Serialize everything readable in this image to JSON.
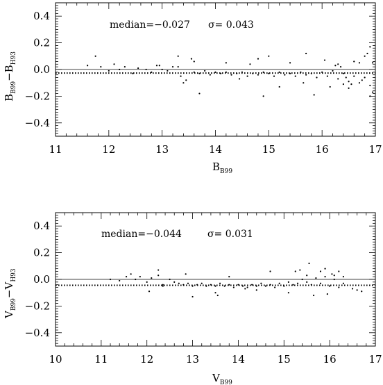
{
  "chart_data": [
    {
      "type": "scatter",
      "annotation": {
        "median_text": "median=−0.027",
        "sigma_text": "σ=  0.043"
      },
      "xlabel": {
        "main": "B",
        "sub": "B99"
      },
      "ylabel": {
        "main1": "B",
        "sub1": "B99",
        "mid": "−B",
        "sub2": "H93"
      },
      "xlim": [
        11,
        17
      ],
      "ylim": [
        -0.5,
        0.5
      ],
      "xticks": [
        11,
        12,
        13,
        14,
        15,
        16,
        17
      ],
      "xtick_labels": [
        "11",
        "12",
        "13",
        "14",
        "15",
        "16",
        "17"
      ],
      "yticks": [
        -0.4,
        -0.2,
        0.0,
        0.2,
        0.4
      ],
      "ytick_labels": [
        "−0.4",
        "−0.2",
        "0.0",
        "0.2",
        "0.4"
      ],
      "zero_line": 0.0,
      "median": -0.027,
      "sigma": 0.043,
      "points_x": [
        11.6,
        11.75,
        11.85,
        12.0,
        12.1,
        12.2,
        12.3,
        12.45,
        12.55,
        12.7,
        12.8,
        12.9,
        13.0,
        13.1,
        13.3,
        13.35,
        13.4,
        13.55,
        13.6,
        13.7,
        13.8,
        13.9,
        14.0,
        14.1,
        14.2,
        14.3,
        14.4,
        14.5,
        14.6,
        14.7,
        14.8,
        14.9,
        15.0,
        15.1,
        15.2,
        15.3,
        15.4,
        15.5,
        15.6,
        15.7,
        15.8,
        15.9,
        16.0,
        16.1,
        16.2,
        16.3,
        16.4,
        16.5,
        16.6,
        16.7,
        16.8,
        16.9,
        13.3,
        13.6,
        13.45,
        14.2,
        14.9,
        15.2,
        15.7,
        16.6,
        16.9,
        16.95,
        16.85,
        16.4,
        16.3,
        16.5,
        14.8,
        15.0,
        15.4,
        15.65,
        16.05,
        16.15,
        16.25,
        16.45,
        16.55,
        16.75,
        16.95,
        13.7,
        12.95,
        13.2,
        14.45,
        14.65,
        15.85,
        16.35,
        16.7,
        16.9,
        16.8
      ],
      "points_y": [
        0.03,
        0.1,
        0.02,
        -0.01,
        0.04,
        0.0,
        0.02,
        -0.03,
        0.01,
        0.0,
        -0.02,
        0.03,
        0.0,
        -0.01,
        0.1,
        -0.05,
        -0.1,
        0.08,
        -0.02,
        -0.03,
        -0.01,
        -0.04,
        -0.02,
        -0.03,
        -0.02,
        -0.04,
        -0.03,
        -0.02,
        -0.05,
        -0.03,
        -0.04,
        -0.02,
        -0.03,
        -0.05,
        -0.02,
        -0.04,
        -0.03,
        -0.05,
        -0.02,
        -0.04,
        -0.03,
        -0.06,
        -0.02,
        -0.05,
        -0.01,
        -0.07,
        -0.03,
        -0.09,
        -0.05,
        -0.1,
        -0.06,
        -0.12,
        0.02,
        0.06,
        -0.08,
        0.05,
        -0.2,
        -0.13,
        0.12,
        0.06,
        0.17,
        -0.17,
        0.12,
        -0.11,
        0.04,
        -0.14,
        0.08,
        0.1,
        0.05,
        -0.1,
        0.07,
        -0.13,
        0.03,
        -0.06,
        -0.11,
        -0.08,
        0.05,
        -0.18,
        0.03,
        0.02,
        -0.07,
        0.04,
        -0.19,
        0.02,
        0.05,
        -0.2,
        0.1
      ]
    },
    {
      "type": "scatter",
      "annotation": {
        "median_text": "median=−0.044",
        "sigma_text": "σ=  0.031"
      },
      "xlabel": {
        "main": "V",
        "sub": "B99"
      },
      "ylabel": {
        "main1": "V",
        "sub1": "B99",
        "mid": "−V",
        "sub2": "H93"
      },
      "xlim": [
        10,
        17
      ],
      "ylim": [
        -0.5,
        0.5
      ],
      "xticks": [
        10,
        11,
        12,
        13,
        14,
        15,
        16,
        17
      ],
      "xtick_labels": [
        "10",
        "11",
        "12",
        "13",
        "14",
        "15",
        "16",
        "17"
      ],
      "yticks": [
        -0.4,
        -0.2,
        0.0,
        0.2,
        0.4
      ],
      "ytick_labels": [
        "−0.4",
        "−0.2",
        "0.0",
        "0.2",
        "0.4"
      ],
      "zero_line": 0.0,
      "median": -0.044,
      "sigma": 0.031,
      "points_x": [
        11.2,
        11.4,
        11.55,
        11.65,
        11.75,
        11.85,
        12.0,
        12.1,
        12.25,
        12.35,
        12.5,
        12.6,
        12.7,
        12.8,
        12.9,
        13.0,
        13.1,
        13.2,
        13.3,
        13.4,
        13.5,
        13.6,
        13.7,
        13.8,
        13.9,
        14.0,
        14.1,
        14.2,
        14.3,
        14.4,
        14.5,
        14.6,
        14.7,
        14.8,
        14.9,
        15.0,
        15.1,
        15.2,
        15.3,
        15.4,
        15.5,
        15.6,
        15.7,
        15.8,
        15.9,
        16.0,
        16.1,
        16.2,
        16.3,
        16.5,
        16.7,
        12.25,
        12.35,
        12.05,
        12.85,
        13.0,
        13.55,
        13.8,
        14.4,
        14.7,
        15.1,
        15.35,
        15.55,
        15.8,
        15.9,
        16.05,
        16.2,
        16.3,
        15.65,
        15.5,
        16.1,
        15.95,
        14.15,
        13.5,
        16.6,
        15.25
      ],
      "points_y": [
        0.0,
        -0.01,
        0.02,
        0.04,
        0.0,
        0.02,
        -0.02,
        0.01,
        0.03,
        -0.04,
        0.0,
        -0.02,
        -0.03,
        -0.04,
        -0.03,
        -0.05,
        -0.04,
        -0.03,
        -0.05,
        -0.04,
        -0.05,
        -0.03,
        -0.05,
        -0.04,
        -0.06,
        -0.04,
        -0.05,
        -0.06,
        -0.04,
        -0.05,
        -0.03,
        -0.05,
        -0.04,
        -0.06,
        -0.03,
        -0.05,
        -0.02,
        -0.04,
        -0.03,
        0.0,
        -0.02,
        -0.04,
        0.01,
        -0.03,
        0.02,
        -0.05,
        0.0,
        -0.06,
        -0.03,
        -0.07,
        -0.09,
        0.07,
        -0.05,
        -0.09,
        0.04,
        -0.13,
        -0.12,
        0.02,
        -0.08,
        0.06,
        -0.1,
        0.07,
        0.12,
        0.06,
        0.08,
        0.04,
        0.06,
        0.02,
        -0.12,
        0.03,
        0.03,
        -0.11,
        -0.07,
        -0.1,
        -0.08,
        0.06
      ]
    }
  ]
}
